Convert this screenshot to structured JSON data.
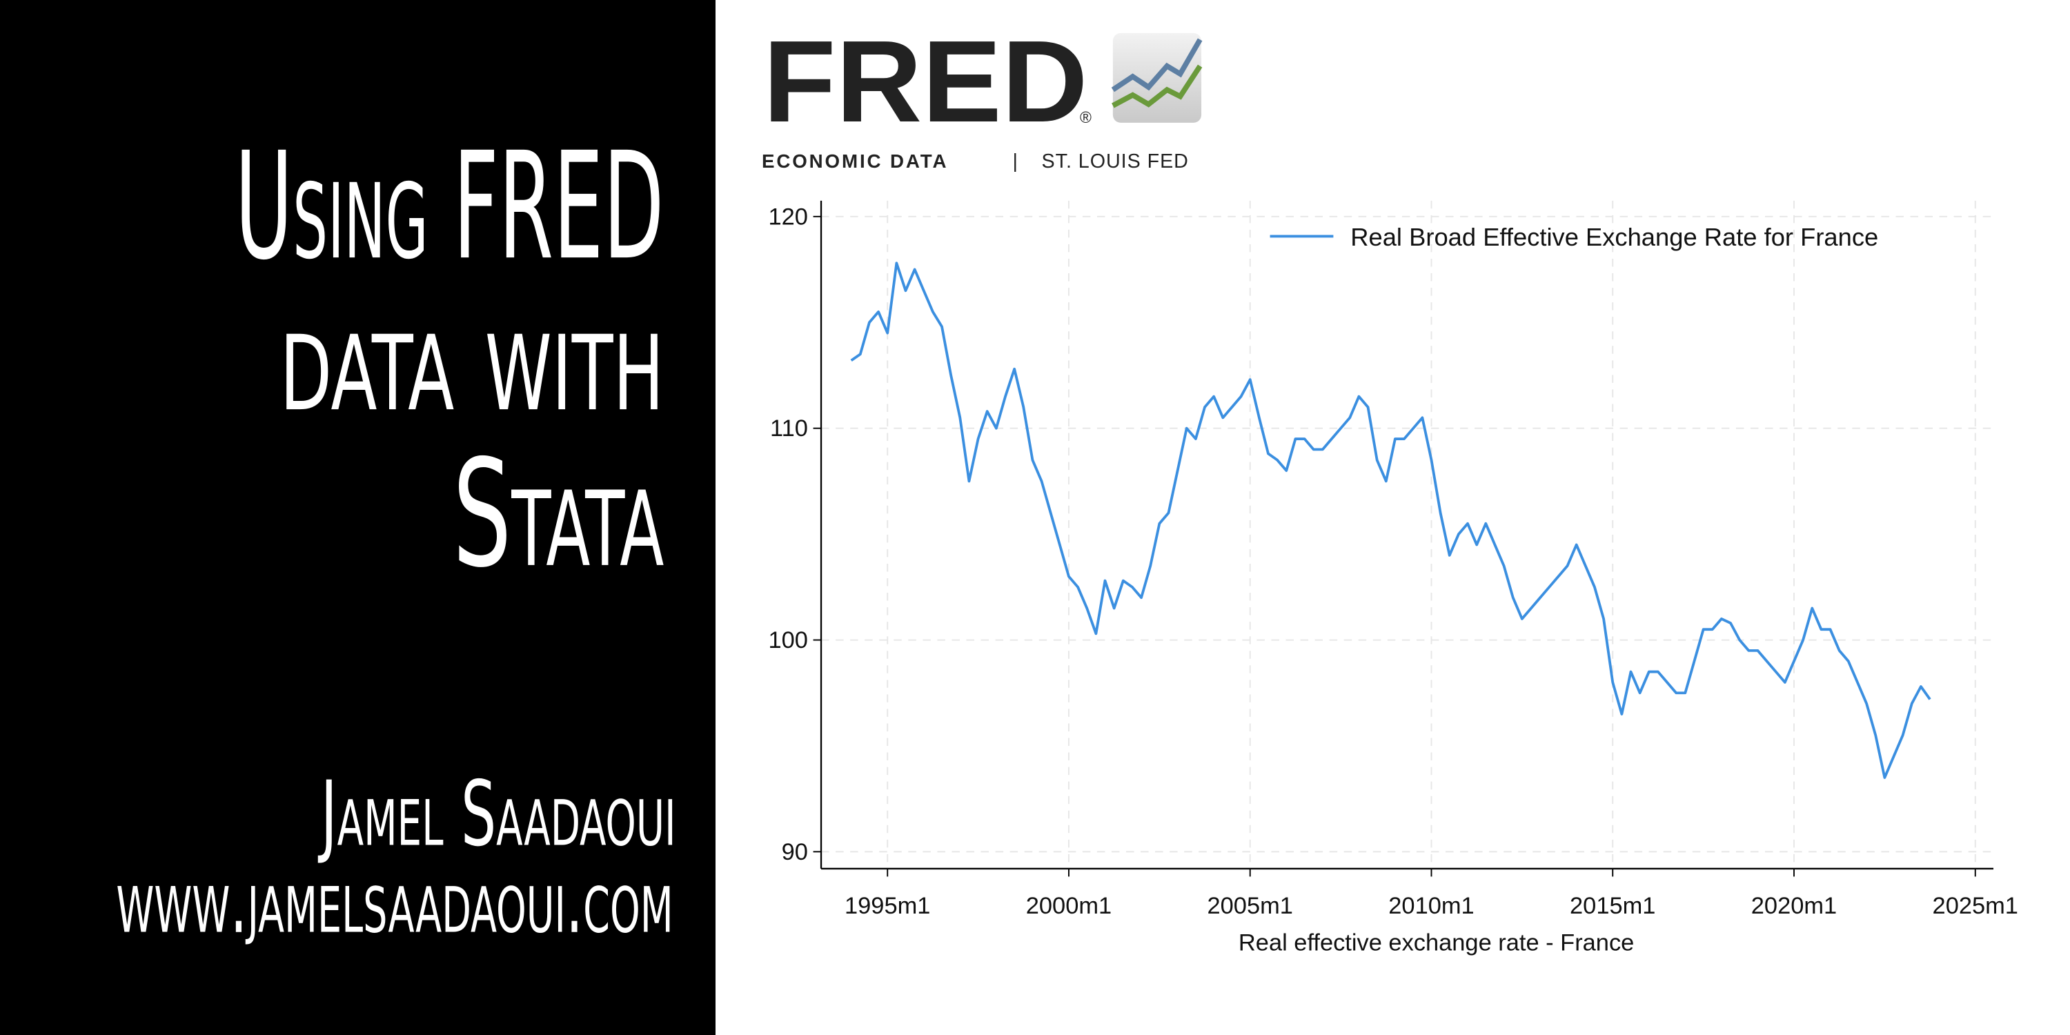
{
  "slide": {
    "title_lines": [
      "Using FRED",
      "data with",
      "Stata"
    ],
    "author": "Jamel Saadaoui",
    "website": "www.jamelsaadaoui.com"
  },
  "logo": {
    "title": "FRED",
    "registered": "®",
    "subtitle": "ECONOMIC DATA",
    "separator": "|",
    "org": "ST. LOUIS FED"
  },
  "chart_data": {
    "type": "line",
    "xlabel": "Real effective exchange rate - France",
    "legend": "top-right",
    "grid": true,
    "xlim": [
      1993.17,
      2025.5
    ],
    "ylim": [
      89.2,
      120.75
    ],
    "xticks": [
      {
        "value": 1995,
        "label": "1995m1"
      },
      {
        "value": 2000,
        "label": "2000m1"
      },
      {
        "value": 2005,
        "label": "2005m1"
      },
      {
        "value": 2010,
        "label": "2010m1"
      },
      {
        "value": 2015,
        "label": "2015m1"
      },
      {
        "value": 2020,
        "label": "2020m1"
      },
      {
        "value": 2025,
        "label": "2025m1"
      }
    ],
    "yticks": [
      90,
      100,
      110,
      120
    ],
    "x": [
      1994,
      1994.25,
      1994.5,
      1994.75,
      1995,
      1995.25,
      1995.5,
      1995.75,
      1996,
      1996.25,
      1996.5,
      1996.75,
      1997,
      1997.25,
      1997.5,
      1997.75,
      1998,
      1998.25,
      1998.5,
      1998.75,
      1999,
      1999.25,
      1999.5,
      1999.75,
      2000,
      2000.25,
      2000.5,
      2000.75,
      2001,
      2001.25,
      2001.5,
      2001.75,
      2002,
      2002.25,
      2002.5,
      2002.75,
      2003,
      2003.25,
      2003.5,
      2003.75,
      2004,
      2004.25,
      2004.5,
      2004.75,
      2005,
      2005.25,
      2005.5,
      2005.75,
      2006,
      2006.25,
      2006.5,
      2006.75,
      2007,
      2007.25,
      2007.5,
      2007.75,
      2008,
      2008.25,
      2008.5,
      2008.75,
      2009,
      2009.25,
      2009.5,
      2009.75,
      2010,
      2010.25,
      2010.5,
      2010.75,
      2011,
      2011.25,
      2011.5,
      2011.75,
      2012,
      2012.25,
      2012.5,
      2012.75,
      2013,
      2013.25,
      2013.5,
      2013.75,
      2014,
      2014.25,
      2014.5,
      2014.75,
      2015,
      2015.25,
      2015.5,
      2015.75,
      2016,
      2016.25,
      2016.5,
      2016.75,
      2017,
      2017.25,
      2017.5,
      2017.75,
      2018,
      2018.25,
      2018.5,
      2018.75,
      2019,
      2019.25,
      2019.5,
      2019.75,
      2020,
      2020.25,
      2020.5,
      2020.75,
      2021,
      2021.25,
      2021.5,
      2021.75,
      2022,
      2022.25,
      2022.5,
      2022.75,
      2023,
      2023.25,
      2023.5,
      2023.75
    ],
    "series": [
      {
        "name": "Real Broad Effective Exchange Rate for France",
        "color": "#3b8fe0",
        "values": [
          113.2,
          113.5,
          115.0,
          115.5,
          114.5,
          117.8,
          116.5,
          117.5,
          116.5,
          115.5,
          114.8,
          112.5,
          110.5,
          107.5,
          109.5,
          110.8,
          110.0,
          111.5,
          112.8,
          111.0,
          108.5,
          107.5,
          106.0,
          104.5,
          103.0,
          102.5,
          101.5,
          100.3,
          102.8,
          101.5,
          102.8,
          102.5,
          102.0,
          103.5,
          105.5,
          106.0,
          108.0,
          110.0,
          109.5,
          111.0,
          111.5,
          110.5,
          111.0,
          111.5,
          112.3,
          110.5,
          108.8,
          108.5,
          108.0,
          109.5,
          109.5,
          109.0,
          109.0,
          109.5,
          110.0,
          110.5,
          111.5,
          111.0,
          108.5,
          107.5,
          109.5,
          109.5,
          110.0,
          110.5,
          108.5,
          106.0,
          104.0,
          105.0,
          105.5,
          104.5,
          105.5,
          104.5,
          103.5,
          102.0,
          101.0,
          101.5,
          102.0,
          102.5,
          103.0,
          103.5,
          104.5,
          103.5,
          102.5,
          101.0,
          98.0,
          96.5,
          98.5,
          97.5,
          98.5,
          98.5,
          98.0,
          97.5,
          97.5,
          99.0,
          100.5,
          100.5,
          101.0,
          100.8,
          100.0,
          99.5,
          99.5,
          99.0,
          98.5,
          98.0,
          99.0,
          100.0,
          101.5,
          100.5,
          100.5,
          99.5,
          99.0,
          98.0,
          97.0,
          95.5,
          93.5,
          94.5,
          95.5,
          97.0,
          97.8,
          97.2
        ]
      }
    ]
  }
}
